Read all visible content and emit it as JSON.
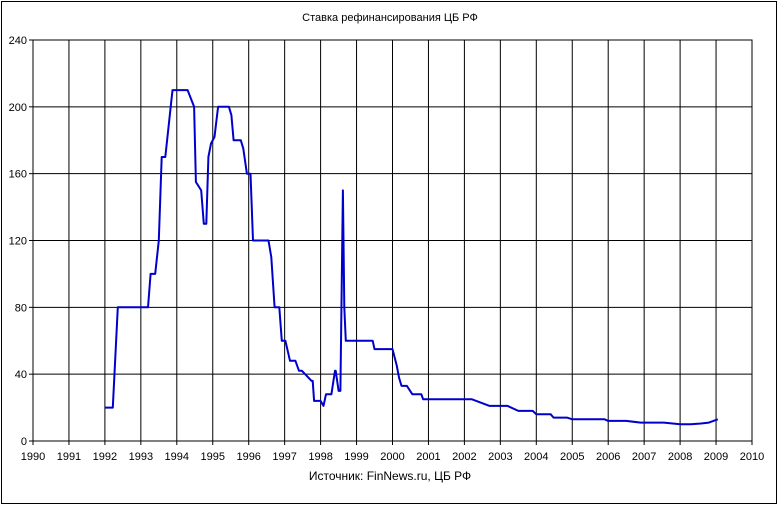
{
  "chart_data": {
    "type": "line",
    "title": "Ставка рефинансирования ЦБ РФ",
    "xlabel": "",
    "ylabel": "",
    "source_note": "Источник: FinNews.ru, ЦБ РФ",
    "xlim": [
      1990,
      2010
    ],
    "ylim": [
      0,
      240
    ],
    "x_ticks": [
      "1990",
      "1991",
      "1992",
      "1993",
      "1994",
      "1995",
      "1996",
      "1997",
      "1998",
      "1999",
      "2000",
      "2001",
      "2002",
      "2003",
      "2004",
      "2005",
      "2006",
      "2007",
      "2008",
      "2009",
      "2010"
    ],
    "y_ticks": [
      "0",
      "40",
      "80",
      "120",
      "160",
      "200",
      "240"
    ],
    "grid": true,
    "legend": "none",
    "line_color": "#0000cc",
    "series": [
      {
        "x": [
          1992.0,
          1992.22,
          1992.36,
          1992.42,
          1993.2,
          1993.27,
          1993.4,
          1993.5,
          1993.58,
          1993.68,
          1993.88,
          1994.3,
          1994.48,
          1994.53,
          1994.68,
          1994.75,
          1994.82,
          1994.88,
          1994.95,
          1995.05,
          1995.15,
          1995.45,
          1995.52,
          1995.58,
          1995.78,
          1995.85,
          1995.95,
          1996.05,
          1996.12,
          1996.55,
          1996.63,
          1996.72,
          1996.85,
          1996.92,
          1997.02,
          1997.15,
          1997.3,
          1997.4,
          1997.48,
          1997.75,
          1997.78,
          1997.82,
          1998.0,
          1998.08,
          1998.15,
          1998.3,
          1998.4,
          1998.42,
          1998.5,
          1998.55,
          1998.62,
          1998.66,
          1998.7,
          1999.0,
          1999.45,
          1999.5,
          2000.0,
          2000.12,
          2000.18,
          2000.25,
          2000.4,
          2000.55,
          2000.8,
          2000.85,
          2001.0,
          2002.2,
          2002.45,
          2002.7,
          2003.2,
          2003.5,
          2003.9,
          2004.0,
          2004.4,
          2004.48,
          2004.85,
          2005.0,
          2005.5,
          2005.9,
          2006.0,
          2006.5,
          2006.9,
          2007.0,
          2007.55,
          2008.0,
          2008.3,
          2008.58,
          2008.8,
          2009.05
        ],
        "y": [
          20,
          20,
          80,
          80,
          80,
          100,
          100,
          120,
          170,
          170,
          210,
          210,
          200,
          155,
          150,
          130,
          130,
          170,
          178,
          182,
          200,
          200,
          195,
          180,
          180,
          175,
          160,
          160,
          120,
          120,
          110,
          80,
          80,
          60,
          60,
          48,
          48,
          42,
          42,
          36,
          36,
          24,
          24,
          21,
          28,
          28,
          42,
          42,
          30,
          30,
          150,
          80,
          60,
          60,
          60,
          55,
          55,
          45,
          38,
          33,
          33,
          28,
          28,
          25,
          25,
          25,
          23,
          21,
          21,
          18,
          18,
          16,
          16,
          14,
          14,
          13,
          13,
          13,
          12,
          12,
          11,
          11,
          11,
          10,
          10,
          10.5,
          11,
          13
        ]
      }
    ]
  }
}
